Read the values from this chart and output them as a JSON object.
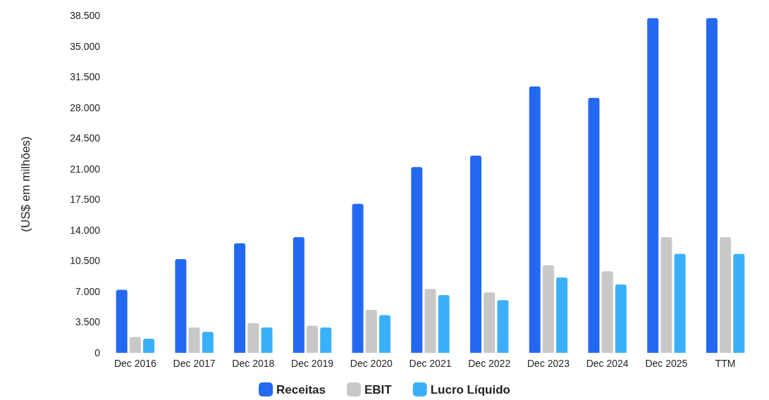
{
  "chart_data": {
    "type": "bar",
    "ylabel": "(US$ em milhões)",
    "categories": [
      "Dec 2016",
      "Dec 2017",
      "Dec 2018",
      "Dec 2019",
      "Dec 2020",
      "Dec 2021",
      "Dec 2022",
      "Dec 2023",
      "Dec 2024",
      "Dec 2025",
      "TTM"
    ],
    "series": [
      {
        "name": "Receitas",
        "color": "#2468f2",
        "values": [
          7200,
          10700,
          12500,
          13200,
          17000,
          21200,
          22500,
          30400,
          29100,
          38200,
          38200
        ]
      },
      {
        "name": "EBIT",
        "color": "#c8c8c8",
        "values": [
          1800,
          2900,
          3400,
          3100,
          4900,
          7300,
          6900,
          10000,
          9300,
          13200,
          13200
        ]
      },
      {
        "name": "Lucro Líquido",
        "color": "#3bb0fa",
        "values": [
          1600,
          2400,
          2900,
          2900,
          4300,
          6600,
          6000,
          8600,
          7800,
          11300,
          11300
        ]
      }
    ],
    "ylim": [
      0,
      38500
    ],
    "yticks": [
      {
        "value": 0,
        "label": "0"
      },
      {
        "value": 3500,
        "label": "3.500"
      },
      {
        "value": 7000,
        "label": "7.000"
      },
      {
        "value": 10500,
        "label": "10.500"
      },
      {
        "value": 14000,
        "label": "14.000"
      },
      {
        "value": 17500,
        "label": "17.500"
      },
      {
        "value": 21000,
        "label": "21.000"
      },
      {
        "value": 24500,
        "label": "24.500"
      },
      {
        "value": 28000,
        "label": "28.000"
      },
      {
        "value": 31500,
        "label": "31.500"
      },
      {
        "value": 35000,
        "label": "35.000"
      },
      {
        "value": 38500,
        "label": "38.500"
      }
    ],
    "grid": false,
    "legend": "bottom"
  }
}
